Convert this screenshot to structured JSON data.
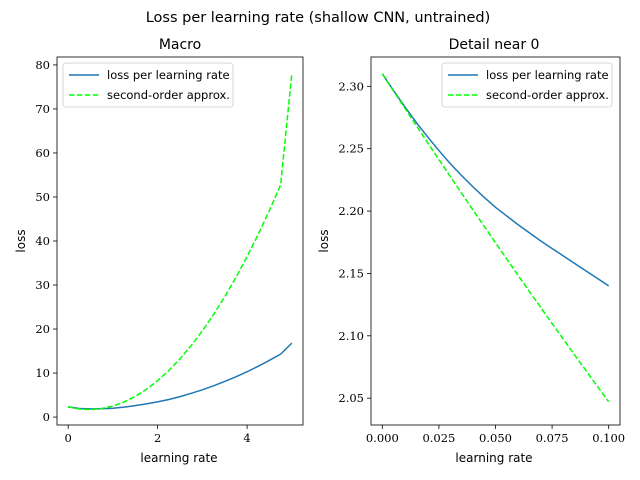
{
  "figure": {
    "suptitle": "Loss per learning rate (shallow CNN, untrained)",
    "colors": {
      "loss": "#1f77b4",
      "approx": "#00ff00",
      "axis": "#000000",
      "legend_border": "#cccccc"
    }
  },
  "chart_data": [
    {
      "type": "line",
      "title": "Macro",
      "xlabel": "learning rate",
      "ylabel": "loss",
      "xlim": [
        -0.25,
        5.25
      ],
      "ylim": [
        -1.8,
        81.8
      ],
      "xticks": [
        0,
        2,
        4
      ],
      "xtick_labels": [
        "0",
        "2",
        "4"
      ],
      "yticks": [
        0,
        10,
        20,
        30,
        40,
        50,
        60,
        70,
        80
      ],
      "ytick_labels": [
        "0",
        "10",
        "20",
        "30",
        "40",
        "50",
        "60",
        "70",
        "80"
      ],
      "legend_position": "top-left",
      "series": [
        {
          "name": "loss per learning rate",
          "style": "solid",
          "x": [
            0,
            0.25,
            0.5,
            0.75,
            1,
            1.25,
            1.5,
            1.75,
            2,
            2.25,
            2.5,
            2.75,
            3,
            3.25,
            3.5,
            3.75,
            4,
            4.25,
            4.5,
            4.75,
            5
          ],
          "values": [
            2.31,
            1.95,
            1.85,
            1.88,
            2.0,
            2.25,
            2.6,
            3.0,
            3.45,
            4.0,
            4.65,
            5.4,
            6.2,
            7.1,
            8.1,
            9.15,
            10.3,
            11.55,
            12.9,
            14.3,
            16.8
          ]
        },
        {
          "name": "second-order approx.",
          "style": "dashed",
          "x": [
            0,
            0.25,
            0.5,
            0.75,
            1,
            1.25,
            1.5,
            1.75,
            2,
            2.25,
            2.5,
            2.75,
            3,
            3.25,
            3.5,
            3.75,
            4,
            4.25,
            4.5,
            4.75,
            5
          ],
          "values": [
            2.31,
            1.84,
            1.71,
            1.94,
            2.51,
            3.43,
            4.69,
            6.31,
            8.27,
            10.58,
            13.23,
            16.24,
            19.59,
            23.29,
            27.33,
            31.72,
            36.46,
            41.54,
            46.97,
            52.75,
            78.0
          ]
        }
      ]
    },
    {
      "type": "line",
      "title": "Detail near 0",
      "xlabel": "learning rate",
      "ylabel": "loss",
      "xlim": [
        -0.005,
        0.105
      ],
      "ylim": [
        2.0285,
        2.3235
      ],
      "xticks": [
        0,
        0.025,
        0.05,
        0.075,
        0.1
      ],
      "xtick_labels": [
        "0.000",
        "0.025",
        "0.050",
        "0.075",
        "0.100"
      ],
      "yticks": [
        2.05,
        2.1,
        2.15,
        2.2,
        2.25,
        2.3
      ],
      "ytick_labels": [
        "2.05",
        "2.10",
        "2.15",
        "2.20",
        "2.25",
        "2.30"
      ],
      "legend_position": "top-right",
      "series": [
        {
          "name": "loss per learning rate",
          "style": "solid",
          "x": [
            0,
            0.005,
            0.01,
            0.015,
            0.02,
            0.025,
            0.03,
            0.035,
            0.04,
            0.045,
            0.05,
            0.055,
            0.06,
            0.065,
            0.07,
            0.075,
            0.08,
            0.085,
            0.09,
            0.095,
            0.1
          ],
          "values": [
            2.31,
            2.2965,
            2.2835,
            2.271,
            2.2595,
            2.2485,
            2.238,
            2.2285,
            2.2195,
            2.211,
            2.203,
            2.196,
            2.189,
            2.1825,
            2.176,
            2.17,
            2.164,
            2.158,
            2.152,
            2.146,
            2.14
          ]
        },
        {
          "name": "second-order approx.",
          "style": "dashed",
          "x": [
            0,
            0.005,
            0.01,
            0.015,
            0.02,
            0.025,
            0.03,
            0.035,
            0.04,
            0.045,
            0.05,
            0.055,
            0.06,
            0.065,
            0.07,
            0.075,
            0.08,
            0.085,
            0.09,
            0.095,
            0.1
          ],
          "values": [
            2.31,
            2.2961,
            2.2823,
            2.2686,
            2.2549,
            2.2413,
            2.2278,
            2.2144,
            2.201,
            2.1878,
            2.1746,
            2.1615,
            2.1485,
            2.1355,
            2.1227,
            2.1099,
            2.0972,
            2.0846,
            2.072,
            2.0596,
            2.0472
          ]
        }
      ]
    }
  ]
}
